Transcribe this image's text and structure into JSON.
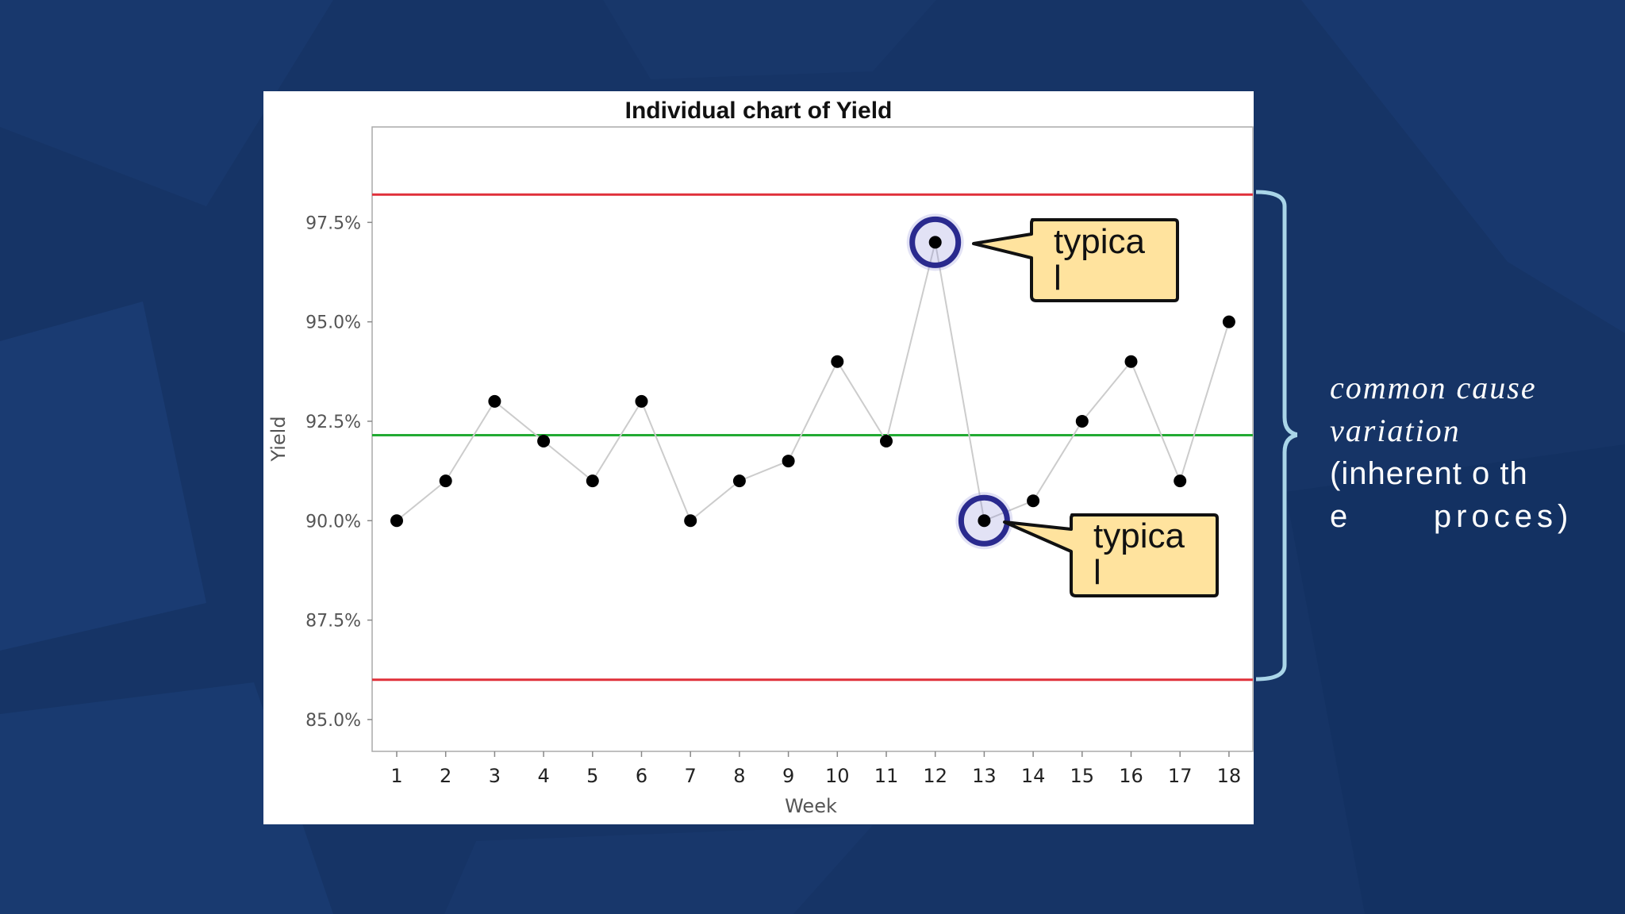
{
  "background": {
    "color": "#163466"
  },
  "chart_data": {
    "type": "line",
    "title": "Individual chart of Yield",
    "xlabel": "Week",
    "ylabel": "Yield",
    "categories": [
      "1",
      "2",
      "3",
      "4",
      "5",
      "6",
      "7",
      "8",
      "9",
      "10",
      "11",
      "12",
      "13",
      "14",
      "15",
      "16",
      "17",
      "18"
    ],
    "series": [
      {
        "values": [
          90.0,
          91.0,
          93.0,
          92.0,
          91.0,
          93.0,
          90.0,
          91.0,
          91.5,
          94.0,
          92.0,
          97.0,
          90.0,
          90.5,
          92.5,
          94.0,
          91.0,
          95.0
        ]
      }
    ],
    "y_ticks": [
      "85.0%",
      "87.5%",
      "90.0%",
      "92.5%",
      "95.0%",
      "97.5%"
    ],
    "y_tick_values": [
      85.0,
      87.5,
      90.0,
      92.5,
      95.0,
      97.5
    ],
    "ylim": [
      84.2,
      99.9
    ],
    "control_limits": {
      "ucl": 98.2,
      "center": 92.15,
      "lcl": 86.0
    },
    "colors": {
      "ucl": "#e0303a",
      "lcl": "#e0303a",
      "center": "#22aa33",
      "line": "#cccccc",
      "point": "#000000",
      "highlight": "#2a2a8e"
    },
    "grid": false,
    "highlighted_weeks": [
      "12",
      "13"
    ]
  },
  "callouts": [
    {
      "line1": "typica",
      "line2": "l",
      "fill": "#ffe39e"
    },
    {
      "line1": "typica",
      "line2": "l",
      "fill": "#ffe39e"
    }
  ],
  "side_note": {
    "line1": "common cause",
    "line2": "variation",
    "line3": "(inherent  o th",
    "line4": "e      proces)"
  }
}
